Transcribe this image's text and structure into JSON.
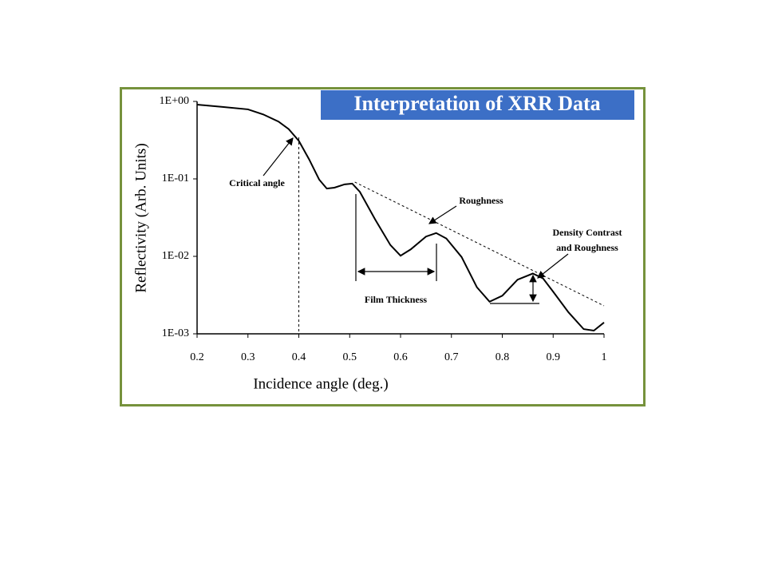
{
  "chart_data": {
    "type": "line",
    "title": "Interpretation of XRR Data",
    "x_label": "Incidence angle (deg.)",
    "y_label": "Reflectivity (Arb. Units)",
    "x": [
      0.2,
      0.25,
      0.3,
      0.33,
      0.36,
      0.38,
      0.4,
      0.42,
      0.44,
      0.455,
      0.47,
      0.49,
      0.505,
      0.52,
      0.55,
      0.58,
      0.6,
      0.62,
      0.65,
      0.67,
      0.69,
      0.72,
      0.75,
      0.775,
      0.8,
      0.83,
      0.86,
      0.88,
      0.9,
      0.93,
      0.96,
      0.98,
      1.0
    ],
    "series": [
      {
        "color": "#000000",
        "values": [
          0.91,
          0.85,
          0.79,
          0.68,
          0.55,
          0.44,
          0.31,
          0.18,
          0.098,
          0.075,
          0.077,
          0.085,
          0.087,
          0.068,
          0.03,
          0.014,
          0.0102,
          0.0123,
          0.018,
          0.02,
          0.017,
          0.0098,
          0.004,
          0.0026,
          0.0031,
          0.005,
          0.006,
          0.0052,
          0.0035,
          0.0019,
          0.00115,
          0.0011,
          0.0014
        ]
      }
    ],
    "roughness_line": {
      "x": [
        0.51,
        1.0
      ],
      "values": [
        0.091,
        0.0023
      ]
    },
    "critical_angle_line": 0.4,
    "annotations": [
      "Critical angle",
      "Roughness",
      "Film Thickness",
      "Density Contrast",
      "and Roughness"
    ],
    "log_y": true,
    "xlim": [
      0.2,
      1
    ],
    "xticks": [
      0.2,
      0.3,
      0.4,
      0.5,
      0.6,
      0.7,
      0.8,
      0.9,
      1
    ],
    "ylim": [
      0.001,
      1
    ],
    "yticks": [
      {
        "value": 0.001,
        "label": "1E-03"
      },
      {
        "value": 0.01,
        "label": "1E-02"
      },
      {
        "value": 0.1,
        "label": "1E-01"
      },
      {
        "value": 1,
        "label": "1E+00"
      }
    ]
  }
}
